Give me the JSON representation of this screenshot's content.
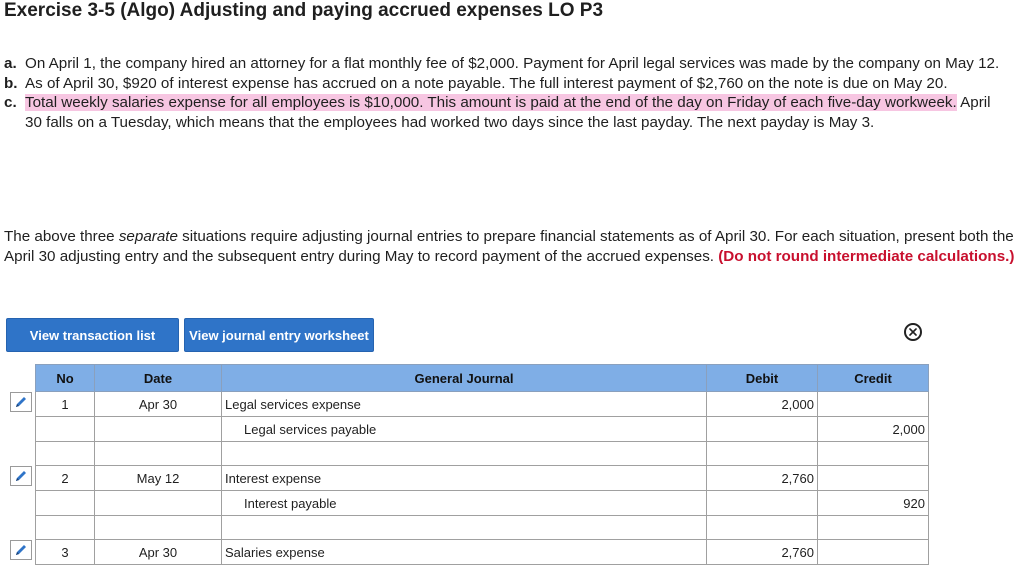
{
  "title": "Exercise 3-5 (Algo) Adjusting and paying accrued expenses LO P3",
  "questions": [
    {
      "letter": "a.",
      "text": "On April 1, the company hired an attorney for a flat monthly fee of $2,000. Payment for April legal services was made by the company on May 12."
    },
    {
      "letter": "b.",
      "text": "As of April 30, $920 of interest expense has accrued on a note payable. The full interest payment of $2,760 on the note is due on May 20."
    },
    {
      "letter": "c.",
      "highlight": "Total weekly salaries expense for all employees is $10,000. This amount is paid at the end of the day on Friday of each five-day workweek.",
      "text": " April 30 falls on a Tuesday, which means that the employees had worked two days since the last payday. The next payday is May 3."
    }
  ],
  "intro": {
    "part1": "The above three ",
    "emph": "separate",
    "part2": " situations require adjusting journal entries to prepare financial statements as of April 30. For each situation, present both the April 30 adjusting entry and the subsequent entry during May to record payment of the accrued expenses. ",
    "note": "(Do not round intermediate calculations.)"
  },
  "buttons": {
    "transaction_list": "View transaction list",
    "journal_worksheet": "View journal entry worksheet"
  },
  "table": {
    "headers": {
      "no": "No",
      "date": "Date",
      "account": "General Journal",
      "debit": "Debit",
      "credit": "Credit"
    },
    "rows": [
      {
        "no": "1",
        "date": "Apr 30",
        "account": "Legal services expense",
        "debit": "2,000",
        "credit": "",
        "indent": false
      },
      {
        "no": "",
        "date": "",
        "account": "Legal services payable",
        "debit": "",
        "credit": "2,000",
        "indent": true
      },
      {
        "no": "",
        "date": "",
        "account": "",
        "debit": "",
        "credit": "",
        "indent": false
      },
      {
        "no": "2",
        "date": "May 12",
        "account": "Interest expense",
        "debit": "2,760",
        "credit": "",
        "indent": false
      },
      {
        "no": "",
        "date": "",
        "account": "Interest payable",
        "debit": "",
        "credit": "920",
        "indent": true
      },
      {
        "no": "",
        "date": "",
        "account": "",
        "debit": "",
        "credit": "",
        "indent": false
      },
      {
        "no": "3",
        "date": "Apr 30",
        "account": "Salaries expense",
        "debit": "2,760",
        "credit": "",
        "indent": false
      }
    ]
  },
  "colors": {
    "button": "#2f74c8",
    "header": "#7faee6",
    "highlight": "#f7c6e2",
    "note": "#c8102e"
  },
  "icons": {
    "edit": "pencil-icon",
    "close": "close-circle-icon"
  }
}
